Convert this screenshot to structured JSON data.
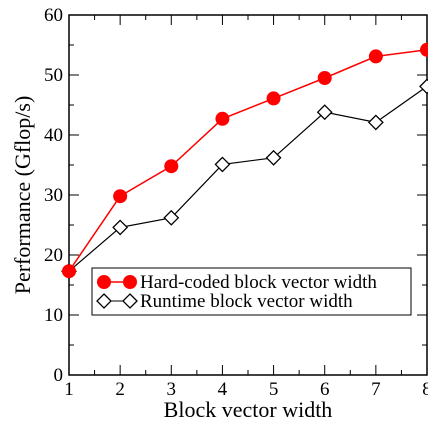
{
  "chart_data": {
    "type": "line",
    "title": "",
    "xlabel": "Block vector width",
    "ylabel": "Performance (Gflop/s)",
    "xlim": [
      1,
      8
    ],
    "ylim": [
      0,
      60
    ],
    "x_ticks": [
      1,
      2,
      3,
      4,
      5,
      6,
      7,
      8
    ],
    "y_ticks": [
      0,
      10,
      20,
      30,
      40,
      50,
      60
    ],
    "grid": false,
    "legend_position": "lower-right",
    "x": [
      1,
      2,
      3,
      4,
      5,
      6,
      7,
      8
    ],
    "series": [
      {
        "name": "Hard-coded block vector width",
        "values": [
          17.3,
          29.8,
          34.8,
          42.7,
          46.1,
          49.5,
          53.1,
          54.2
        ],
        "color": "#ff0000",
        "marker": "filled-circle"
      },
      {
        "name": "Runtime block vector width",
        "values": [
          17.3,
          24.6,
          26.2,
          35.1,
          36.2,
          43.8,
          42.1,
          48.1
        ],
        "color": "#000000",
        "marker": "open-diamond"
      }
    ]
  }
}
